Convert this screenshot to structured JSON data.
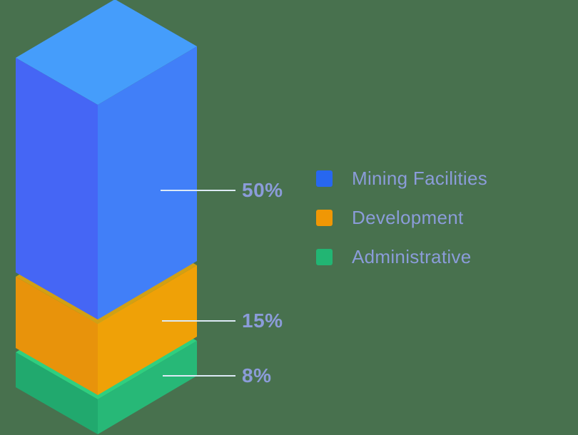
{
  "background_color": "#48714E",
  "text_color": "#8B9CD9",
  "chart_data": {
    "type": "bar",
    "subtype": "isometric-3d-stacked-column",
    "title": "",
    "xlabel": "",
    "ylabel": "",
    "axes_visible": false,
    "grid": false,
    "legend_position": "right",
    "leader_line_color": "#DDEAF6",
    "categories": [
      "Mining Facilities",
      "Development",
      "Administrative"
    ],
    "series": [
      {
        "name": "Mining Facilities",
        "value": 50,
        "label": "50%",
        "color": "#2767F0",
        "faces": {
          "top": "#459DFB",
          "left": "#4566F5",
          "right": "#417FF8"
        }
      },
      {
        "name": "Development",
        "value": 15,
        "label": "15%",
        "color": "#F09705",
        "faces": {
          "top": "#D2A013",
          "left": "#E8930B",
          "right": "#EFA107"
        }
      },
      {
        "name": "Administrative",
        "value": 8,
        "label": "8%",
        "color": "#22B573",
        "faces": {
          "top": "#2FCF7F",
          "left": "#21A96E",
          "right": "#27B877"
        }
      }
    ]
  },
  "legend": {
    "items": [
      {
        "label": "Mining Facilities"
      },
      {
        "label": "Development"
      },
      {
        "label": "Administrative"
      }
    ]
  }
}
